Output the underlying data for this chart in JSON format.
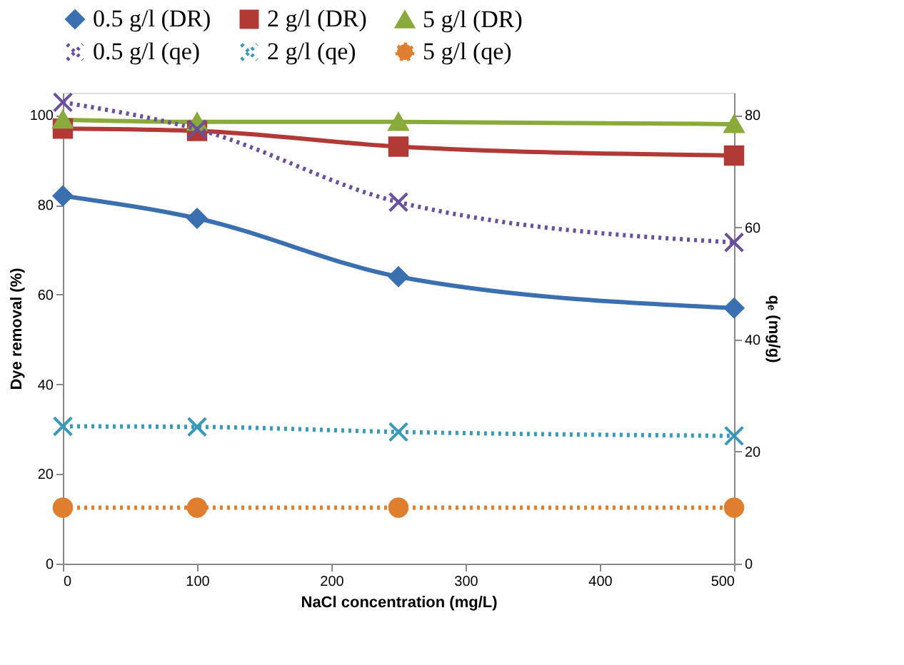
{
  "chart_data": {
    "type": "line",
    "xlabel": "NaCl concentration (mg/L)",
    "ylabel": "Dye removal (%)",
    "y2label": "qₑ (mg/g)",
    "x": [
      0,
      100,
      250,
      500
    ],
    "series": [
      {
        "name": "0.5 g/l (DR)",
        "color": "#3a6fb0",
        "values": [
          82,
          77,
          64,
          57
        ],
        "marker": "diamond",
        "line_style": "solid"
      },
      {
        "name": "2 g/l (DR)",
        "color": "#b13a36",
        "values": [
          97,
          96.5,
          93,
          91
        ],
        "marker": "square",
        "line_style": "solid"
      },
      {
        "name": "5 g/l (DR)",
        "color": "#8aaa3c",
        "values": [
          99,
          98.5,
          98.5,
          98
        ],
        "marker": "triangle",
        "line_style": "solid"
      },
      {
        "name": "0.5 g/l (qe)",
        "color": "#6a4f9c",
        "values": [
          82.3,
          77.5,
          64.5,
          57.3
        ],
        "marker": "cross",
        "line_style": "dotted",
        "axis": "y2"
      },
      {
        "name": "2 g/l (qe)",
        "color": "#3a98b8",
        "values": [
          24.5,
          24.4,
          23.5,
          22.8
        ],
        "marker": "cross",
        "line_style": "dotted",
        "axis": "y2"
      },
      {
        "name": "5 g/l (qe)",
        "color": "#e07e30",
        "values": [
          10,
          10,
          10,
          10
        ],
        "marker": "circle",
        "line_style": "dotted",
        "axis": "y2"
      }
    ],
    "xlim": [
      0,
      500
    ],
    "xticks": [
      0,
      100,
      200,
      300,
      400,
      500
    ],
    "ylim": [
      0,
      105
    ],
    "yticks": [
      0,
      20,
      40,
      60,
      80,
      100
    ],
    "y2lim": [
      0,
      84
    ],
    "y2ticks": [
      0,
      20,
      40,
      60,
      80
    ],
    "grid": false,
    "legend": "top"
  }
}
